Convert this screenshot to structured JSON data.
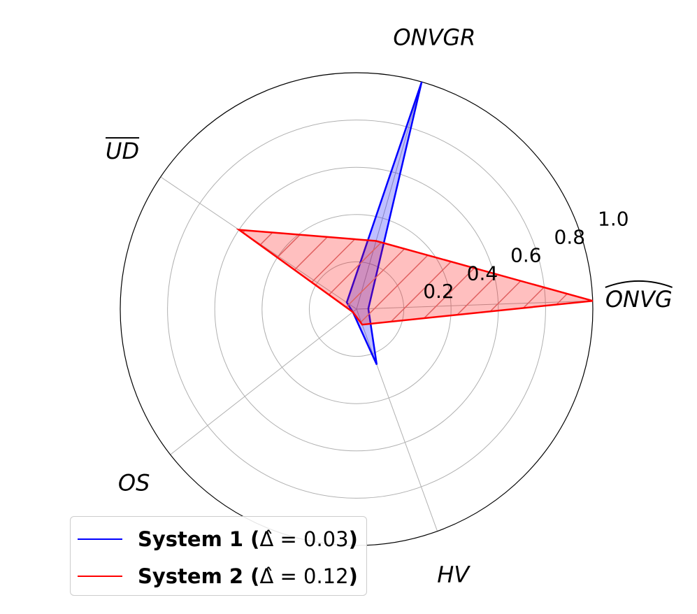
{
  "chart_data": {
    "type": "radar",
    "title": "",
    "axes": [
      {
        "key": "onvg_hat",
        "label": "ONVG",
        "decoration": "hat"
      },
      {
        "key": "onvgr",
        "label": "ONVGR",
        "decoration": ""
      },
      {
        "key": "ud_bar",
        "label": "UD",
        "decoration": "bar"
      },
      {
        "key": "os",
        "label": "OS",
        "decoration": ""
      },
      {
        "key": "hv",
        "label": "HV",
        "decoration": ""
      }
    ],
    "radial_ticks": [
      "0.2",
      "0.4",
      "0.6",
      "0.8",
      "1.0"
    ],
    "radial_tick_values": [
      0.2,
      0.4,
      0.6,
      0.8,
      1.0
    ],
    "rlim": [
      0,
      1.0
    ],
    "grid": true,
    "legend_position": "lower-left",
    "series": [
      {
        "name": "System 1",
        "delta_label": "0.03",
        "color": "#0000ff",
        "fill": "#0000ff",
        "hatch": false,
        "values": [
          0.05,
          1.0,
          0.05,
          0.02,
          0.25
        ]
      },
      {
        "name": "System 2",
        "delta_label": "0.12",
        "color": "#ff0000",
        "fill": "#ff0000",
        "hatch": true,
        "values": [
          1.0,
          0.3,
          0.6,
          0.02,
          0.07
        ]
      }
    ]
  }
}
